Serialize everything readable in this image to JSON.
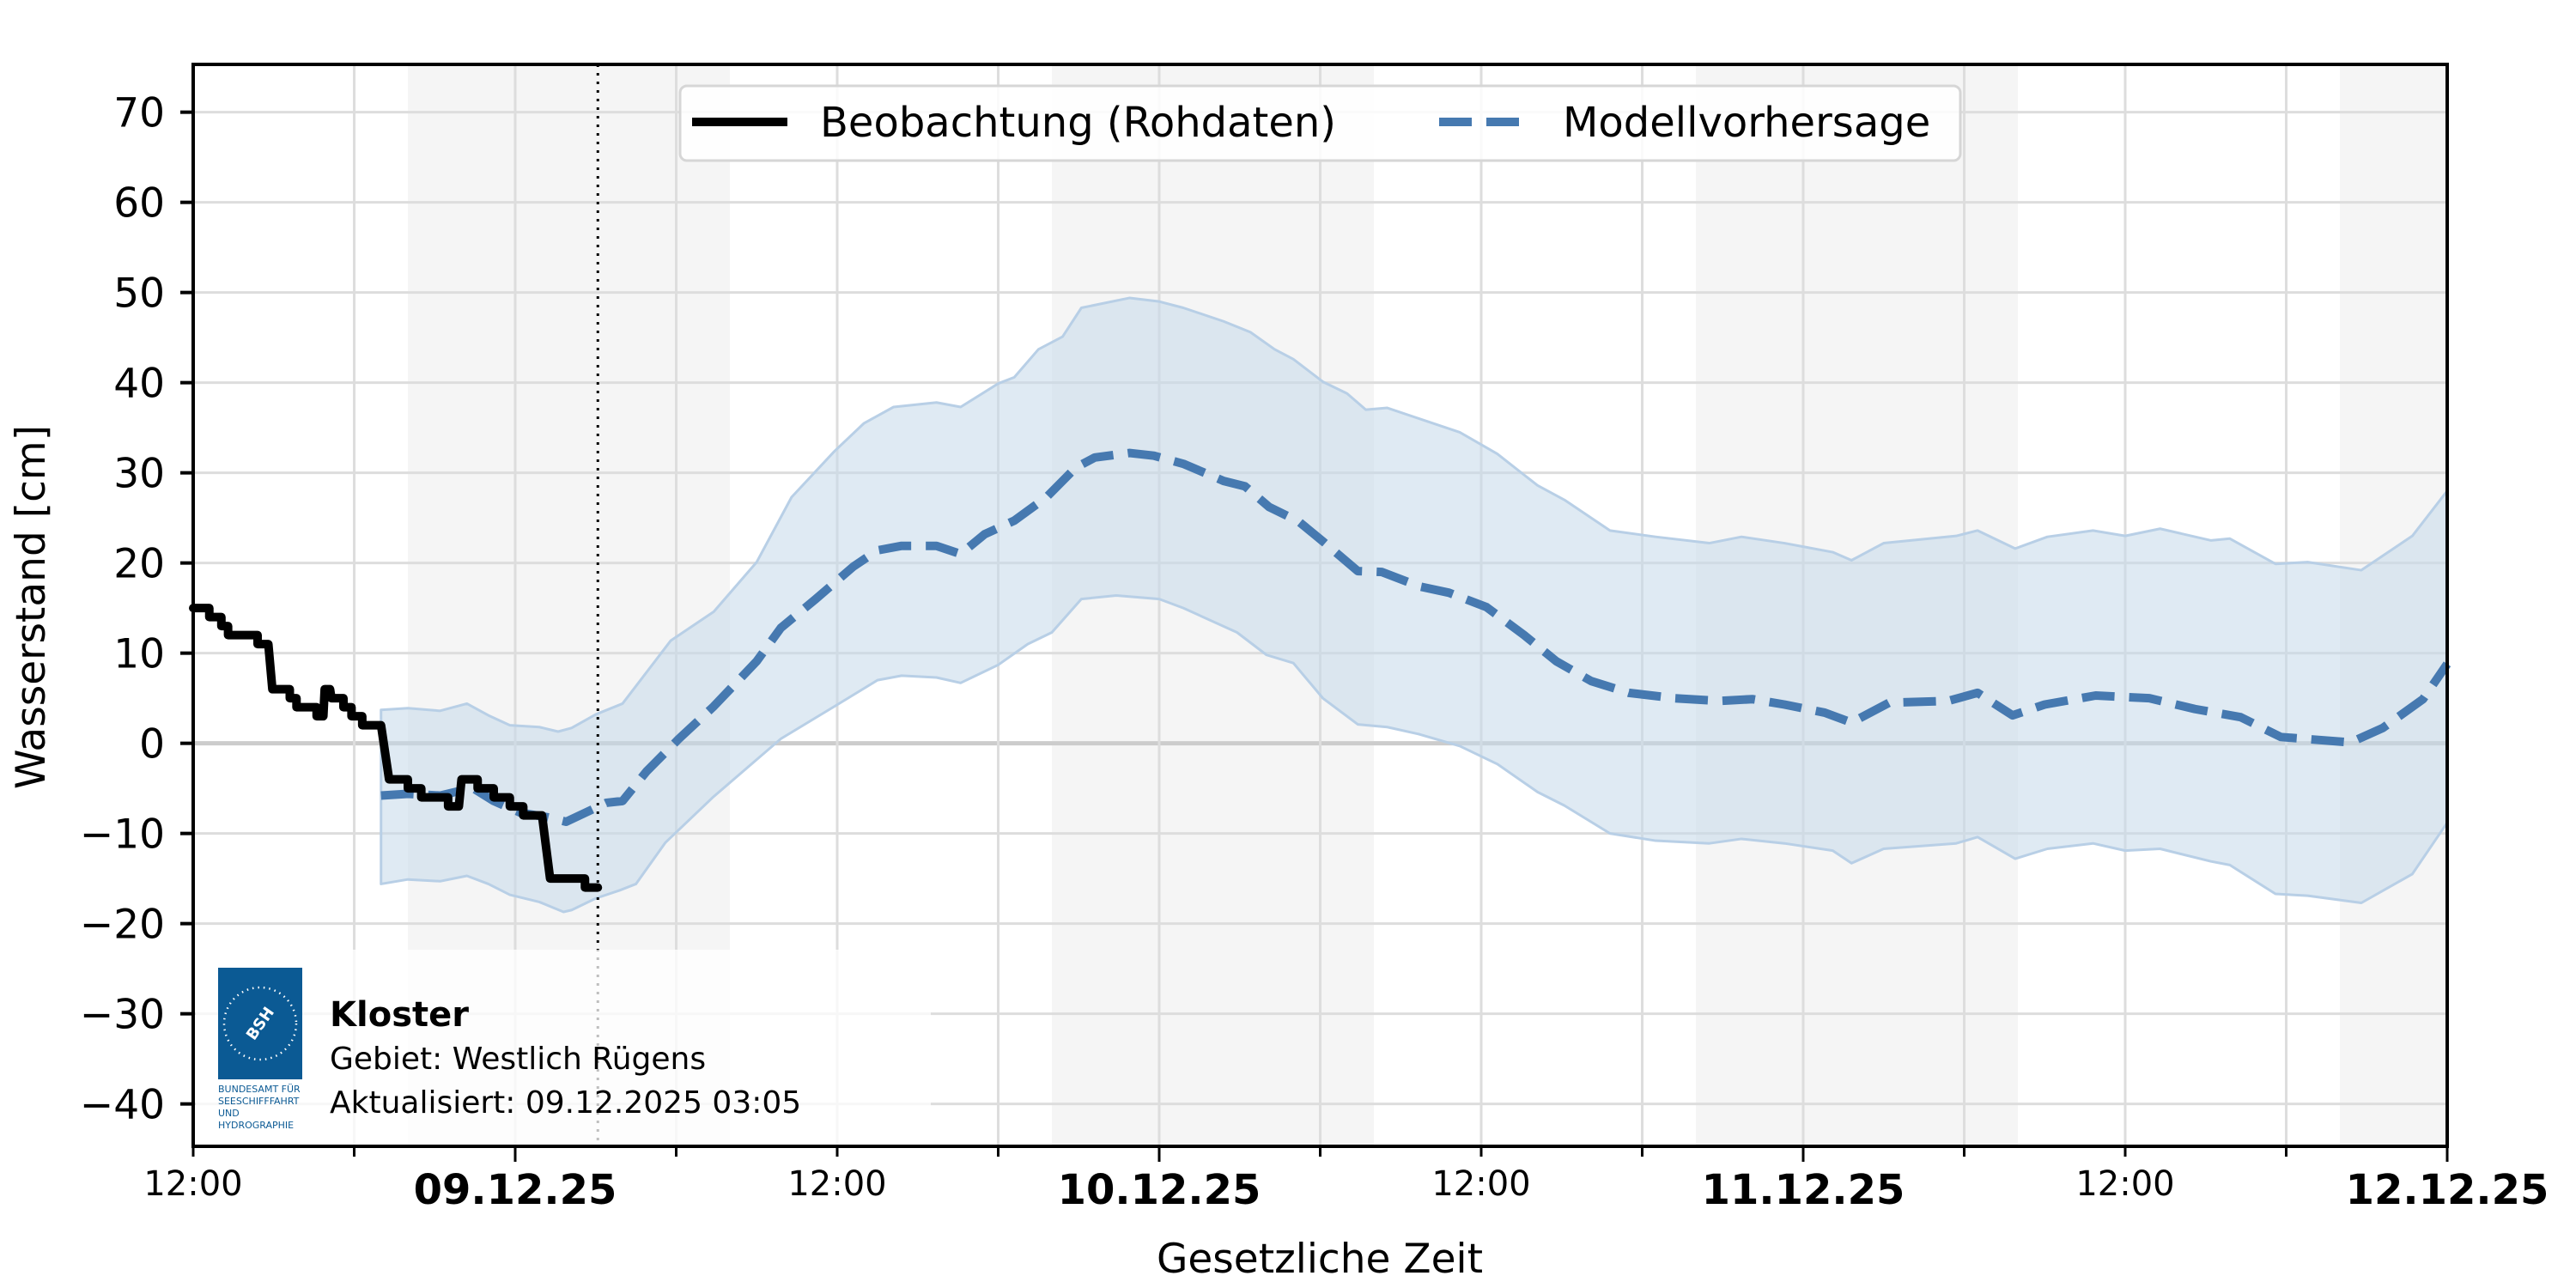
{
  "chart_data": {
    "type": "line",
    "title": "",
    "xlabel": "Gesetzliche Zeit",
    "ylabel": "Wasserstand [cm]",
    "ylim": [
      -44.7,
      75.3
    ],
    "x_start": "08.12.25 12:00",
    "x_end": "12.12.25 00:00",
    "x_unit": "hours since 08.12.25 12:00",
    "xlim_hours": [
      0,
      84
    ],
    "grid": true,
    "legend_position": "upper center",
    "y_ticks": [
      70,
      60,
      50,
      40,
      30,
      20,
      10,
      0,
      -10,
      -20,
      -30,
      -40
    ],
    "y_tick_labels": [
      "70",
      "60",
      "50",
      "40",
      "30",
      "20",
      "10",
      "0",
      "−10",
      "−20",
      "−30",
      "−40"
    ],
    "x_ticks": [
      {
        "hour": 0,
        "label": "12:00",
        "kind": "time"
      },
      {
        "hour": 6,
        "label": "",
        "kind": "minor"
      },
      {
        "hour": 12,
        "label": "09.12.25",
        "kind": "date"
      },
      {
        "hour": 18,
        "label": "",
        "kind": "minor"
      },
      {
        "hour": 24,
        "label": "12:00",
        "kind": "time"
      },
      {
        "hour": 30,
        "label": "",
        "kind": "minor"
      },
      {
        "hour": 36,
        "label": "10.12.25",
        "kind": "date"
      },
      {
        "hour": 42,
        "label": "",
        "kind": "minor"
      },
      {
        "hour": 48,
        "label": "12:00",
        "kind": "time"
      },
      {
        "hour": 54,
        "label": "",
        "kind": "minor"
      },
      {
        "hour": 60,
        "label": "11.12.25",
        "kind": "date"
      },
      {
        "hour": 66,
        "label": "",
        "kind": "minor"
      },
      {
        "hour": 72,
        "label": "12:00",
        "kind": "time"
      },
      {
        "hour": 78,
        "label": "",
        "kind": "minor"
      },
      {
        "hour": 84,
        "label": "12.12.25",
        "kind": "date"
      }
    ],
    "night_bands_hours": [
      [
        8,
        20
      ],
      [
        32,
        44
      ],
      [
        56,
        68
      ],
      [
        80,
        84
      ]
    ],
    "now_marker": {
      "hour": 15.08,
      "label": "09.12.2025 03:05",
      "style": "dotted"
    },
    "series": [
      {
        "name": "Beobachtung (Rohdaten)",
        "style": "solid-step",
        "color": "#000000",
        "points": [
          [
            0,
            15
          ],
          [
            0.6,
            15
          ],
          [
            0.6,
            14
          ],
          [
            1.05,
            14
          ],
          [
            1.05,
            13
          ],
          [
            1.3,
            13
          ],
          [
            1.3,
            12
          ],
          [
            2.4,
            12
          ],
          [
            2.4,
            11
          ],
          [
            2.8,
            11
          ],
          [
            2.95,
            6
          ],
          [
            3.6,
            6
          ],
          [
            3.6,
            5
          ],
          [
            3.85,
            5
          ],
          [
            3.85,
            4
          ],
          [
            4.6,
            4
          ],
          [
            4.6,
            3
          ],
          [
            4.85,
            3
          ],
          [
            4.9,
            6
          ],
          [
            5.1,
            6
          ],
          [
            5.15,
            5
          ],
          [
            5.6,
            5
          ],
          [
            5.6,
            4
          ],
          [
            5.9,
            4
          ],
          [
            5.9,
            3
          ],
          [
            6.3,
            3
          ],
          [
            6.3,
            2
          ],
          [
            7.0,
            2
          ],
          [
            7.3,
            -4
          ],
          [
            8.0,
            -4
          ],
          [
            8.0,
            -5
          ],
          [
            8.5,
            -5
          ],
          [
            8.5,
            -6
          ],
          [
            9.5,
            -6
          ],
          [
            9.5,
            -7
          ],
          [
            9.9,
            -7
          ],
          [
            10.0,
            -4
          ],
          [
            10.6,
            -4
          ],
          [
            10.6,
            -5
          ],
          [
            11.2,
            -5
          ],
          [
            11.2,
            -6
          ],
          [
            11.8,
            -6
          ],
          [
            11.8,
            -7
          ],
          [
            12.3,
            -7
          ],
          [
            12.3,
            -8
          ],
          [
            13.0,
            -8
          ],
          [
            13.3,
            -15
          ],
          [
            14.6,
            -15
          ],
          [
            14.6,
            -16
          ],
          [
            15.08,
            -16
          ]
        ]
      },
      {
        "name": "Modellvorhersage",
        "style": "dashed",
        "color": "#4679b0",
        "points": [
          [
            7,
            -5.8
          ],
          [
            8,
            -5.6
          ],
          [
            9.2,
            -5.8
          ],
          [
            9.9,
            -5.3
          ],
          [
            10.5,
            -5.1
          ],
          [
            11.2,
            -6.4
          ],
          [
            12.2,
            -7.7
          ],
          [
            13.2,
            -8.2
          ],
          [
            13.9,
            -8.7
          ],
          [
            14.9,
            -7.3
          ],
          [
            15.4,
            -6.6
          ],
          [
            16,
            -6.4
          ],
          [
            16.9,
            -3.1
          ],
          [
            18.1,
            0.5
          ],
          [
            19.4,
            4.1
          ],
          [
            21,
            9.1
          ],
          [
            21.9,
            12.8
          ],
          [
            23.2,
            16
          ],
          [
            24.6,
            19.6
          ],
          [
            25.5,
            21.4
          ],
          [
            26.4,
            21.9
          ],
          [
            27.7,
            21.9
          ],
          [
            28.6,
            21.0
          ],
          [
            29.5,
            23.2
          ],
          [
            30.6,
            24.7
          ],
          [
            31.8,
            27.3
          ],
          [
            32.9,
            30.6
          ],
          [
            33.6,
            31.7
          ],
          [
            34.9,
            32.2
          ],
          [
            35.8,
            31.9
          ],
          [
            36.9,
            31.0
          ],
          [
            38.4,
            29.1
          ],
          [
            39.2,
            28.5
          ],
          [
            40.1,
            26.2
          ],
          [
            41.2,
            24.6
          ],
          [
            42.1,
            22.4
          ],
          [
            43.4,
            19.1
          ],
          [
            44.3,
            19.0
          ],
          [
            45.7,
            17.4
          ],
          [
            46.8,
            16.7
          ],
          [
            48.2,
            15.1
          ],
          [
            49.6,
            12.0
          ],
          [
            50.8,
            9.1
          ],
          [
            52.1,
            6.9
          ],
          [
            53.5,
            5.6
          ],
          [
            55.2,
            5.0
          ],
          [
            56.9,
            4.7
          ],
          [
            58.1,
            4.9
          ],
          [
            59.3,
            4.3
          ],
          [
            60.8,
            3.4
          ],
          [
            61.8,
            2.3
          ],
          [
            63.2,
            4.5
          ],
          [
            65.4,
            4.7
          ],
          [
            66.5,
            5.6
          ],
          [
            67.8,
            3.1
          ],
          [
            69,
            4.3
          ],
          [
            70.9,
            5.3
          ],
          [
            72.9,
            5.0
          ],
          [
            74.6,
            3.8
          ],
          [
            76.3,
            2.9
          ],
          [
            77.8,
            0.7
          ],
          [
            80.4,
            0.1
          ],
          [
            81.6,
            1.7
          ],
          [
            83.1,
            4.9
          ],
          [
            84,
            8.8
          ]
        ]
      },
      {
        "name": "Vorhersage-Unsicherheit (obere Grenze)",
        "style": "band-upper",
        "color": "#b8cfe6",
        "points": [
          [
            7,
            3.7
          ],
          [
            8,
            3.9
          ],
          [
            9.2,
            3.6
          ],
          [
            10.2,
            4.4
          ],
          [
            11,
            3.1
          ],
          [
            11.8,
            2.0
          ],
          [
            12.9,
            1.8
          ],
          [
            13.6,
            1.3
          ],
          [
            14.1,
            1.7
          ],
          [
            15,
            3.2
          ],
          [
            16,
            4.4
          ],
          [
            17.8,
            11.4
          ],
          [
            19.4,
            14.6
          ],
          [
            21,
            20.1
          ],
          [
            22.3,
            27.3
          ],
          [
            23.9,
            32.4
          ],
          [
            25,
            35.5
          ],
          [
            26.1,
            37.3
          ],
          [
            27.7,
            37.8
          ],
          [
            28.6,
            37.3
          ],
          [
            30,
            39.9
          ],
          [
            30.6,
            40.6
          ],
          [
            31.5,
            43.7
          ],
          [
            32.4,
            45.1
          ],
          [
            33.1,
            48.3
          ],
          [
            34.9,
            49.4
          ],
          [
            36,
            49.0
          ],
          [
            36.9,
            48.3
          ],
          [
            38.4,
            46.8
          ],
          [
            39.4,
            45.6
          ],
          [
            40.3,
            43.7
          ],
          [
            41,
            42.6
          ],
          [
            42.1,
            40.1
          ],
          [
            43,
            38.8
          ],
          [
            43.7,
            37.0
          ],
          [
            44.5,
            37.2
          ],
          [
            45.7,
            36.0
          ],
          [
            47.2,
            34.5
          ],
          [
            48.6,
            32.1
          ],
          [
            50.1,
            28.6
          ],
          [
            51.1,
            27.0
          ],
          [
            52.8,
            23.6
          ],
          [
            54.5,
            22.9
          ],
          [
            56.5,
            22.2
          ],
          [
            57.7,
            22.9
          ],
          [
            59.3,
            22.2
          ],
          [
            61.1,
            21.2
          ],
          [
            61.8,
            20.3
          ],
          [
            63,
            22.2
          ],
          [
            65.7,
            23.0
          ],
          [
            66.5,
            23.6
          ],
          [
            67.9,
            21.6
          ],
          [
            69.1,
            22.9
          ],
          [
            70.8,
            23.6
          ],
          [
            72,
            23.0
          ],
          [
            73.3,
            23.8
          ],
          [
            75.2,
            22.5
          ],
          [
            75.9,
            22.7
          ],
          [
            77.6,
            19.9
          ],
          [
            78.8,
            20.1
          ],
          [
            80.8,
            19.2
          ],
          [
            82.7,
            23.0
          ],
          [
            84,
            28.0
          ]
        ]
      },
      {
        "name": "Vorhersage-Unsicherheit (untere Grenze)",
        "style": "band-lower",
        "color": "#b8cfe6",
        "points": [
          [
            7,
            -15.6
          ],
          [
            8,
            -15.1
          ],
          [
            9.2,
            -15.3
          ],
          [
            10.2,
            -14.7
          ],
          [
            11,
            -15.6
          ],
          [
            11.8,
            -16.8
          ],
          [
            12.9,
            -17.6
          ],
          [
            13.8,
            -18.7
          ],
          [
            14.1,
            -18.5
          ],
          [
            15,
            -17.2
          ],
          [
            15.9,
            -16.3
          ],
          [
            16.5,
            -15.6
          ],
          [
            17.6,
            -11.0
          ],
          [
            19.4,
            -5.9
          ],
          [
            21.9,
            0.5
          ],
          [
            23.9,
            4.1
          ],
          [
            25.5,
            7.0
          ],
          [
            26.4,
            7.5
          ],
          [
            27.7,
            7.3
          ],
          [
            28.6,
            6.7
          ],
          [
            30,
            8.7
          ],
          [
            31.1,
            11.0
          ],
          [
            32,
            12.3
          ],
          [
            33.1,
            16.0
          ],
          [
            34.4,
            16.4
          ],
          [
            36,
            16.0
          ],
          [
            36.9,
            15.0
          ],
          [
            38.9,
            12.3
          ],
          [
            40,
            9.8
          ],
          [
            41,
            8.9
          ],
          [
            42.1,
            5.0
          ],
          [
            43.4,
            2.1
          ],
          [
            44.5,
            1.8
          ],
          [
            45.7,
            1.0
          ],
          [
            47.2,
            -0.3
          ],
          [
            48.6,
            -2.3
          ],
          [
            50.1,
            -5.4
          ],
          [
            51.1,
            -6.9
          ],
          [
            52.8,
            -10.0
          ],
          [
            54.5,
            -10.8
          ],
          [
            56.5,
            -11.1
          ],
          [
            57.7,
            -10.6
          ],
          [
            59.3,
            -11.1
          ],
          [
            61.1,
            -11.9
          ],
          [
            61.8,
            -13.3
          ],
          [
            63,
            -11.7
          ],
          [
            65.7,
            -11.1
          ],
          [
            66.5,
            -10.4
          ],
          [
            67.9,
            -12.8
          ],
          [
            69.1,
            -11.7
          ],
          [
            70.8,
            -11.1
          ],
          [
            72,
            -11.9
          ],
          [
            73.3,
            -11.7
          ],
          [
            75.2,
            -13.1
          ],
          [
            75.9,
            -13.5
          ],
          [
            77.6,
            -16.7
          ],
          [
            78.8,
            -16.9
          ],
          [
            80.8,
            -17.7
          ],
          [
            82.7,
            -14.5
          ],
          [
            84,
            -8.8
          ]
        ]
      }
    ]
  },
  "legend": {
    "items": [
      {
        "label": "Beobachtung (Rohdaten)",
        "color": "#000000",
        "style": "solid"
      },
      {
        "label": "Modellvorhersage",
        "color": "#4679b0",
        "style": "dashed"
      }
    ]
  },
  "info_box": {
    "station": "Kloster",
    "area": "Gebiet: Westlich Rügens",
    "updated": "Aktualisiert: 09.12.2025 03:05",
    "logo": {
      "abbrev": "BSH",
      "lines": [
        "BUNDESAMT FÜR",
        "SEESCHIFFFAHRT",
        "UND",
        "HYDROGRAPHIE"
      ],
      "color": "#0b5a94"
    }
  },
  "colors": {
    "observation": "#000000",
    "forecast": "#4679b0",
    "band_fill": "#c5d8ea",
    "band_edge": "#b8cfe6",
    "night_band": "#f5f5f5",
    "grid": "#dddddd",
    "zero_line": "#cccccc"
  }
}
